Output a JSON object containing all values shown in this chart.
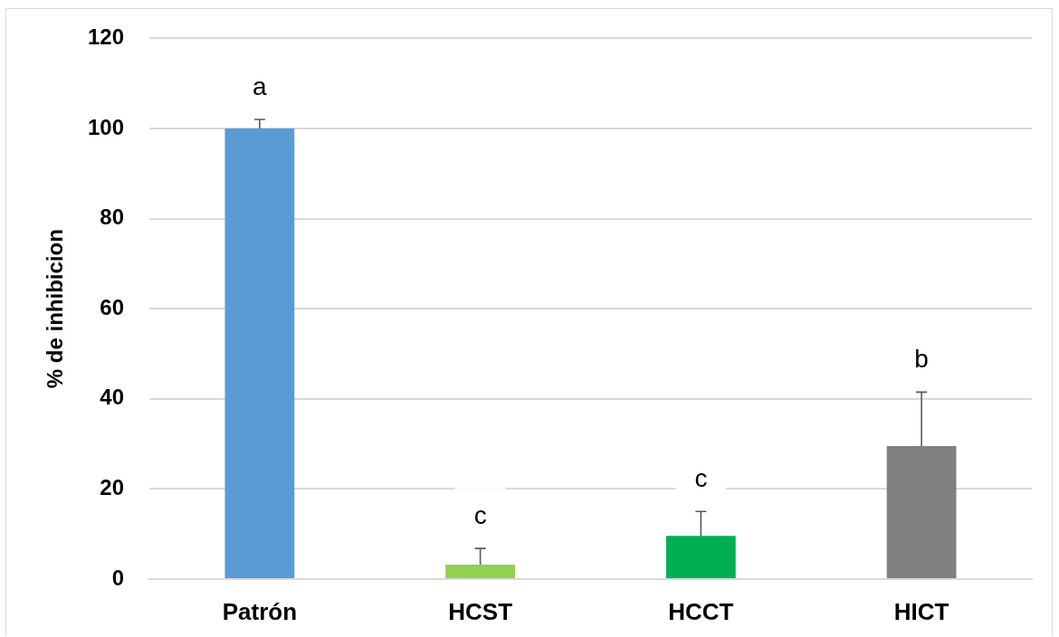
{
  "chart_data": {
    "type": "bar",
    "ylabel": "% de inhibicion",
    "categories": [
      "Patrón",
      "HCST",
      "HCCT",
      "HICT"
    ],
    "values": [
      100,
      3.2,
      9.6,
      29.5
    ],
    "colors": [
      "#5b9bd5",
      "#92d050",
      "#00b050",
      "#808080"
    ],
    "errors": [
      [
        100,
        102
      ],
      [
        3.2,
        6.8
      ],
      [
        9.6,
        15
      ],
      [
        29.5,
        41.5
      ]
    ],
    "ylim": [
      0,
      120
    ],
    "yticks": [
      0,
      20,
      40,
      60,
      80,
      100,
      120
    ],
    "grid": "y",
    "legend": false,
    "annotations": [
      "a",
      "c",
      "c",
      "b"
    ]
  }
}
